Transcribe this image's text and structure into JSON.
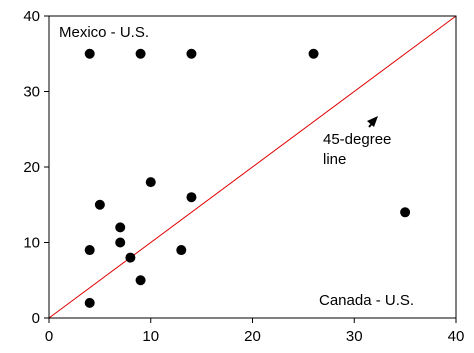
{
  "chart_data": {
    "type": "scatter",
    "title": "",
    "xlabel": "",
    "ylabel": "",
    "xlim": [
      0,
      40
    ],
    "ylim": [
      0,
      40
    ],
    "grid": false,
    "xticks": [
      0,
      10,
      20,
      30,
      40
    ],
    "yticks": [
      0,
      10,
      20,
      30,
      40
    ],
    "x_tick_labels": [
      "0",
      "10",
      "20",
      "30",
      "40"
    ],
    "y_tick_labels": [
      "0",
      "10",
      "20",
      "30",
      "40"
    ],
    "series": [
      {
        "color": "#000000",
        "points": [
          {
            "x": 4,
            "y": 35
          },
          {
            "x": 9,
            "y": 35
          },
          {
            "x": 14,
            "y": 35
          },
          {
            "x": 26,
            "y": 35
          },
          {
            "x": 10,
            "y": 18
          },
          {
            "x": 14,
            "y": 16
          },
          {
            "x": 5,
            "y": 15
          },
          {
            "x": 35,
            "y": 14
          },
          {
            "x": 7,
            "y": 12
          },
          {
            "x": 7,
            "y": 10
          },
          {
            "x": 4,
            "y": 9
          },
          {
            "x": 13,
            "y": 9
          },
          {
            "x": 8,
            "y": 8
          },
          {
            "x": 9,
            "y": 5
          },
          {
            "x": 4,
            "y": 2
          }
        ]
      }
    ],
    "reference_line": {
      "from": {
        "x": 0,
        "y": 0
      },
      "to": {
        "x": 40,
        "y": 40
      },
      "color": "#e00000"
    },
    "annotations": {
      "top_left": "Mexico - U.S.",
      "bottom_right": "Canada - U.S.",
      "line_label_1": "45-degree",
      "line_label_2": "line"
    }
  }
}
